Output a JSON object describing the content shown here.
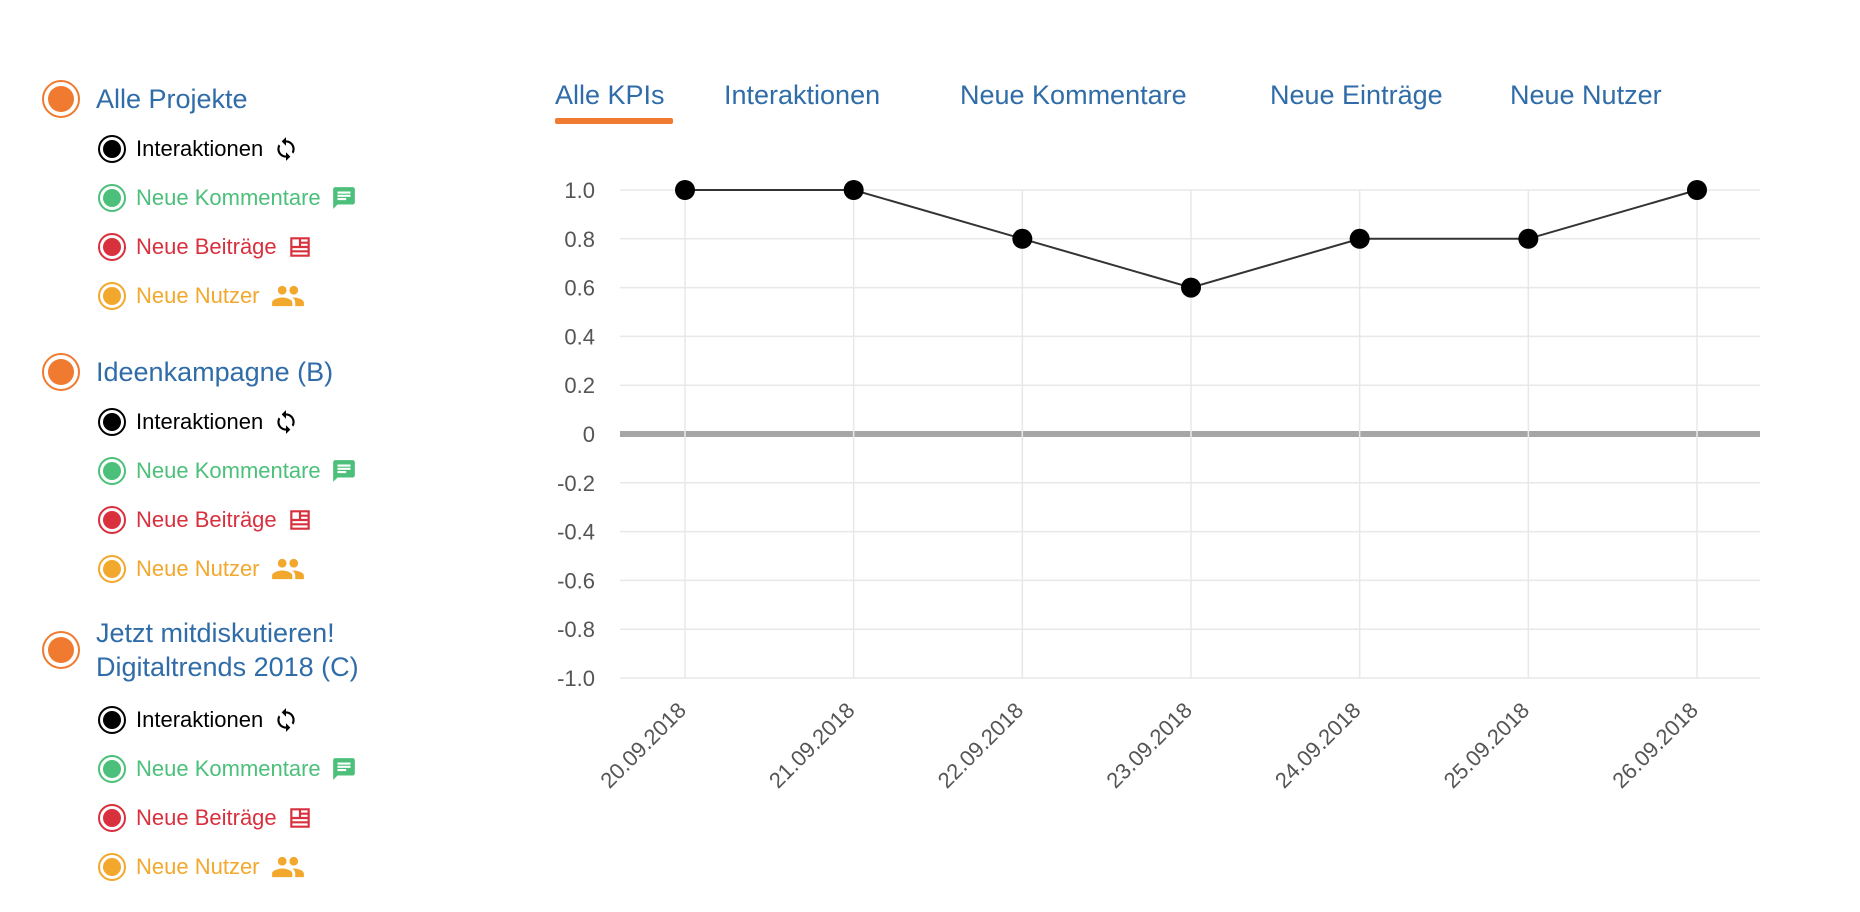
{
  "sidebar": {
    "projects": [
      {
        "title": "Alle Projekte",
        "kpis": [
          "Interaktionen",
          "Neue Kommentare",
          "Neue Beiträge",
          "Neue Nutzer"
        ]
      },
      {
        "title": "Ideenkampagne (B)",
        "kpis": [
          "Interaktionen",
          "Neue Kommentare",
          "Neue Beiträge",
          "Neue Nutzer"
        ]
      },
      {
        "title": "Jetzt mitdiskutieren!\nDigitaltrends 2018 (C)",
        "kpis": [
          "Interaktionen",
          "Neue Kommentare",
          "Neue Beiträge",
          "Neue Nutzer"
        ]
      }
    ],
    "kpi_icons": [
      "refresh-icon",
      "comment-icon",
      "article-icon",
      "users-icon"
    ],
    "kpi_colors": [
      "#000000",
      "#4cc07a",
      "#d9303e",
      "#f2a82d"
    ],
    "project_color": "#f07a2f"
  },
  "tabs": [
    {
      "label": "Alle KPIs",
      "active": true
    },
    {
      "label": "Interaktionen",
      "active": false
    },
    {
      "label": "Neue Kommentare",
      "active": false
    },
    {
      "label": "Neue Einträge",
      "active": false
    },
    {
      "label": "Neue Nutzer",
      "active": false
    }
  ],
  "colors": {
    "link": "#2f6ca8",
    "accent": "#f07a2f",
    "grid": "#e8e8e8",
    "zero_line": "#a6a6a6",
    "series": "#000000"
  },
  "chart_data": {
    "type": "line",
    "categories": [
      "20.09.2018",
      "21.09.2018",
      "22.09.2018",
      "23.09.2018",
      "24.09.2018",
      "25.09.2018",
      "26.09.2018"
    ],
    "values": [
      1.0,
      1.0,
      0.8,
      0.6,
      0.8,
      0.8,
      1.0
    ],
    "yticks": [
      "1.0",
      "0.8",
      "0.6",
      "0.4",
      "0.2",
      "0",
      "-0.2",
      "-0.4",
      "-0.6",
      "-0.8",
      "-1.0"
    ],
    "ylim": [
      -1.0,
      1.0
    ],
    "grid": true
  }
}
